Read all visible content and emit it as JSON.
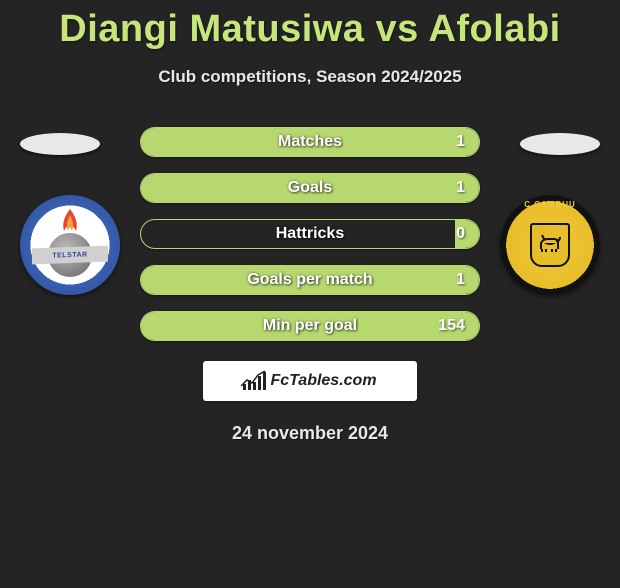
{
  "title": "Diangi Matusiwa vs Afolabi",
  "subtitle": "Club competitions, Season 2024/2025",
  "date": "24 november 2024",
  "attribution": "FcTables.com",
  "colors": {
    "background": "#242424",
    "accent": "#c6e67b",
    "bar_border": "#b7d86f",
    "bar_fill": "#b7d86f",
    "text_light": "#e8e8e8",
    "text_white": "#ffffff"
  },
  "left_player": {
    "name": "Diangi Matusiwa",
    "club": "Telstar",
    "badge_banner_text": "TELSTAR"
  },
  "right_player": {
    "name": "Afolabi",
    "club": "SC Cambuur",
    "badge_ring_text": "C CAMBUU"
  },
  "stats": [
    {
      "label": "Matches",
      "right_value": "1",
      "right_fill_pct": 100
    },
    {
      "label": "Goals",
      "right_value": "1",
      "right_fill_pct": 100
    },
    {
      "label": "Hattricks",
      "right_value": "0",
      "right_fill_pct": 7
    },
    {
      "label": "Goals per match",
      "right_value": "1",
      "right_fill_pct": 100
    },
    {
      "label": "Min per goal",
      "right_value": "154",
      "right_fill_pct": 100
    }
  ],
  "typography": {
    "title_fontsize": 38,
    "subtitle_fontsize": 17,
    "stat_label_fontsize": 16,
    "date_fontsize": 18
  }
}
